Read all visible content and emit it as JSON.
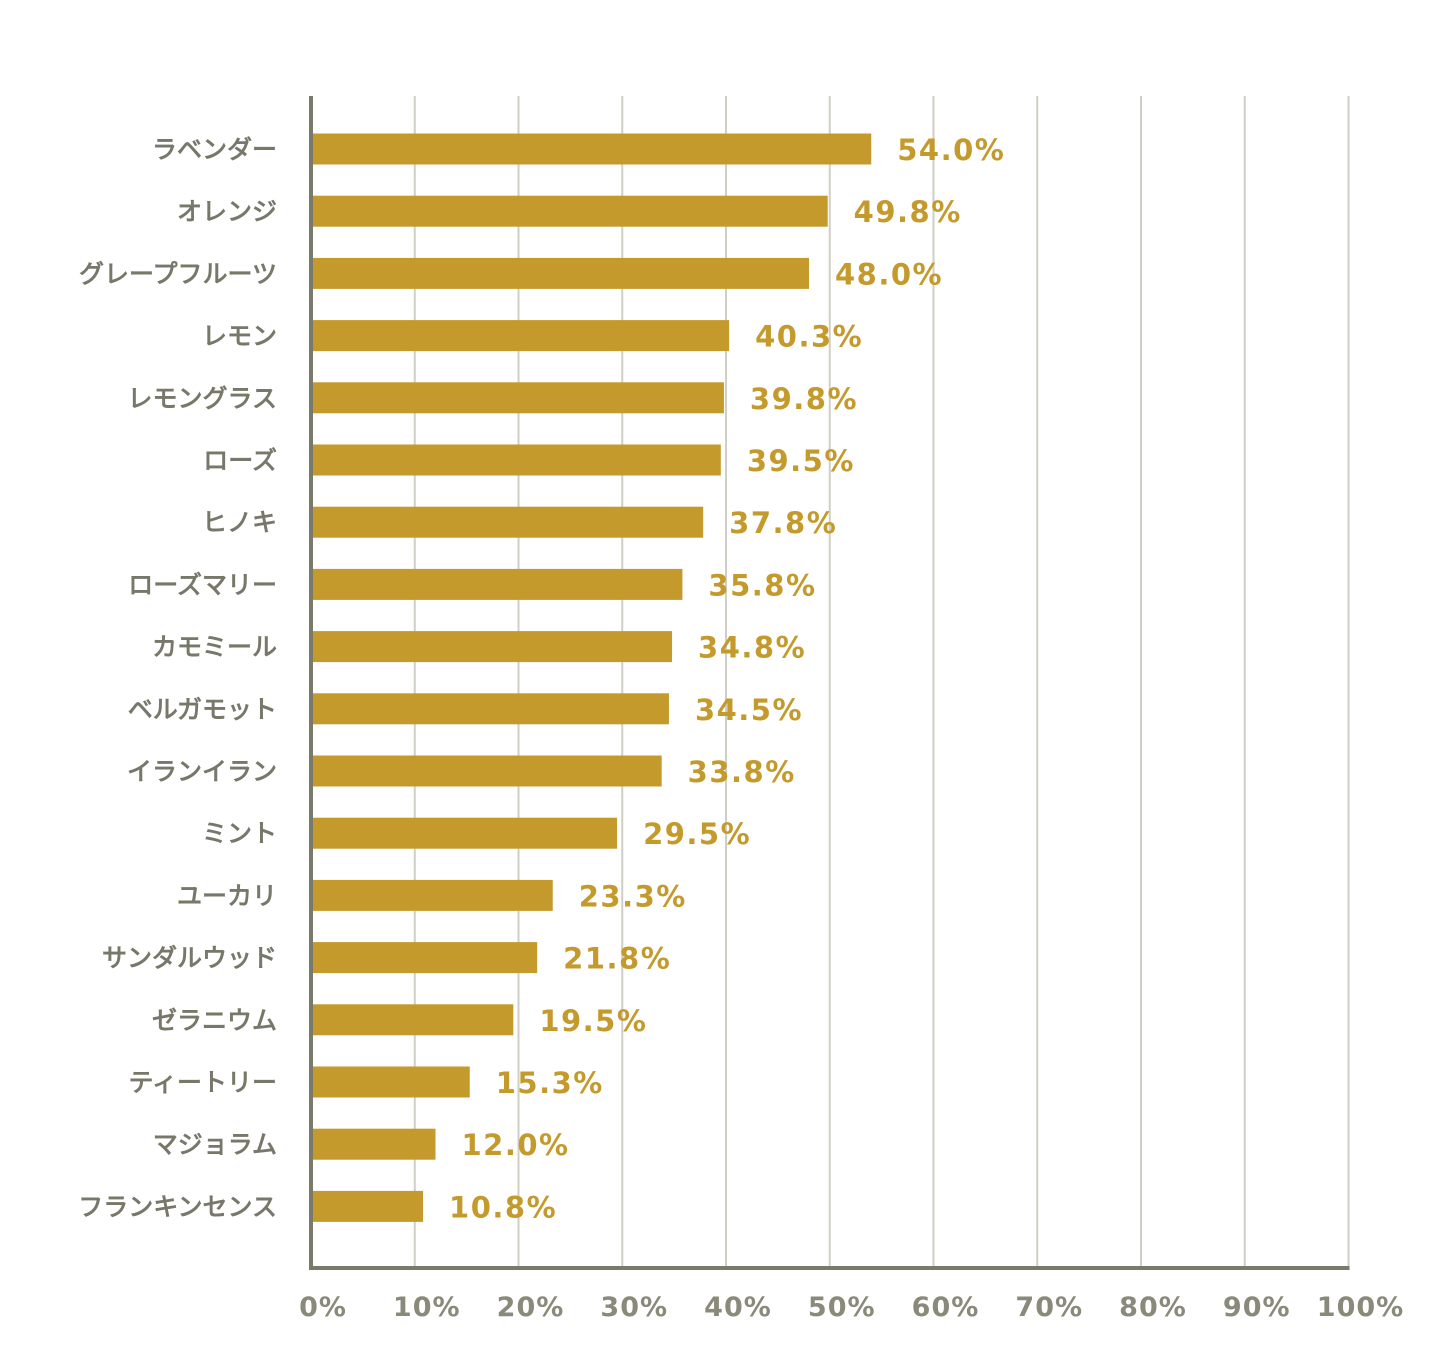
{
  "chart_data": {
    "type": "bar",
    "orientation": "horizontal",
    "categories": [
      "ラベンダー",
      "オレンジ",
      "グレープフルーツ",
      "レモン",
      "レモングラス",
      "ローズ",
      "ヒノキ",
      "ローズマリー",
      "カモミール",
      "ベルガモット",
      "イランイラン",
      "ミント",
      "ユーカリ",
      "サンダルウッド",
      "ゼラニウム",
      "ティートリー",
      "マジョラム",
      "フランキンセンス"
    ],
    "values": [
      54.0,
      49.8,
      48.0,
      40.3,
      39.8,
      39.5,
      37.8,
      35.8,
      34.8,
      34.5,
      33.8,
      29.5,
      23.3,
      21.8,
      19.5,
      15.3,
      12.0,
      10.8
    ],
    "value_labels": [
      "54.0%",
      "49.8%",
      "48.0%",
      "40.3%",
      "39.8%",
      "39.5%",
      "37.8%",
      "35.8%",
      "34.8%",
      "34.5%",
      "33.8%",
      "29.5%",
      "23.3%",
      "21.8%",
      "19.5%",
      "15.3%",
      "12.0%",
      "10.8%"
    ],
    "xlim": [
      0,
      100
    ],
    "ticks": [
      0,
      10,
      20,
      30,
      40,
      50,
      60,
      70,
      80,
      90,
      100
    ],
    "tick_labels": [
      "0%",
      "10%",
      "20%",
      "30%",
      "40%",
      "50%",
      "60%",
      "70%",
      "80%",
      "90%",
      "100%"
    ],
    "grid": "vertical",
    "legend": "none",
    "colors": {
      "bar": "#c49a2c",
      "value_text": "#c49a2c",
      "category_text": "#77776a",
      "axis": "#7a7a6a",
      "grid": "#cfcfc5",
      "tick_text": "#8a8a7a"
    }
  }
}
